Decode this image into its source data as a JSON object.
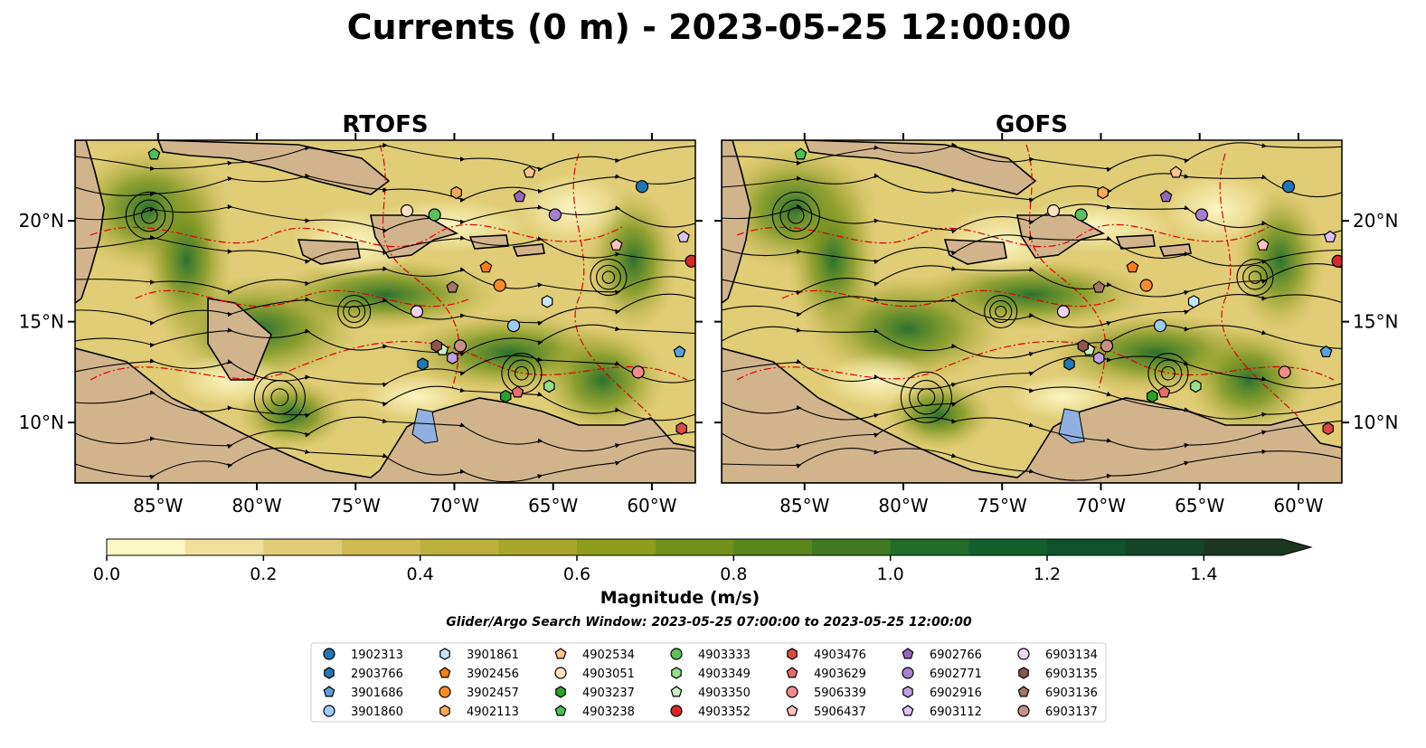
{
  "title": "Currents (0 m) - 2023-05-25 12:00:00",
  "colorbar": {
    "label": "Magnitude (m/s)",
    "ticks": [
      "0.0",
      "0.2",
      "0.4",
      "0.6",
      "0.8",
      "1.0",
      "1.2",
      "1.4"
    ],
    "levels": [
      0,
      0.1,
      0.2,
      0.3,
      0.4,
      0.5,
      0.6,
      0.7,
      0.8,
      0.9,
      1.0,
      1.1,
      1.2,
      1.3,
      1.4,
      1.5
    ],
    "colors": [
      "#fdf7c5",
      "#efe19c",
      "#e0cd76",
      "#cfbb52",
      "#bdb13e",
      "#a9a72a",
      "#8d9d1a",
      "#72911a",
      "#5a861d",
      "#3f7a21",
      "#226d2a",
      "#11602e",
      "#0e532b",
      "#154527",
      "#1c3620"
    ],
    "extend": "max"
  },
  "search_window": "Glider/Argo Search Window: 2023-05-25 07:00:00 to 2023-05-25 12:00:00",
  "chart_data": [
    {
      "type": "heatmap",
      "title": "RTOFS",
      "xlim": [
        -89.2,
        -57.8
      ],
      "ylim": [
        7.0,
        24.0
      ],
      "xticks": [
        "85°W",
        "80°W",
        "75°W",
        "70°W",
        "65°W",
        "60°W"
      ],
      "yticks": [
        "10°N",
        "15°N",
        "20°N"
      ],
      "land_color": "#d2b48c",
      "legend_placement": "below"
    },
    {
      "type": "heatmap",
      "title": "GOFS",
      "xlim": [
        -89.2,
        -57.8
      ],
      "ylim": [
        7.0,
        24.0
      ],
      "xticks": [
        "85°W",
        "80°W",
        "75°W",
        "70°W",
        "65°W",
        "60°W"
      ],
      "yticks": [
        "10°N",
        "15°N",
        "20°N"
      ],
      "land_color": "#d2b48c",
      "legend_placement": "below"
    }
  ],
  "platforms": [
    {
      "id": "1902313",
      "color": "#1f77b4",
      "marker": "circle",
      "lon": -60.5,
      "lat": 21.7
    },
    {
      "id": "2903766",
      "color": "#1f77b4",
      "marker": "hexagon",
      "lon": -71.6,
      "lat": 12.9
    },
    {
      "id": "3901686",
      "color": "#5aa0e0",
      "marker": "pentagon",
      "lon": -58.6,
      "lat": 13.5
    },
    {
      "id": "3901860",
      "color": "#9ec9f0",
      "marker": "circle",
      "lon": -67.0,
      "lat": 14.8
    },
    {
      "id": "3901861",
      "color": "#c6e4f7",
      "marker": "hexagon",
      "lon": -65.3,
      "lat": 16.0
    },
    {
      "id": "3902456",
      "color": "#ff7f0e",
      "marker": "pentagon",
      "lon": -68.4,
      "lat": 17.7
    },
    {
      "id": "3902457",
      "color": "#ff8c29",
      "marker": "circle",
      "lon": -67.7,
      "lat": 16.8
    },
    {
      "id": "4902113",
      "color": "#ffa952",
      "marker": "hexagon",
      "lon": -69.9,
      "lat": 21.4
    },
    {
      "id": "4902534",
      "color": "#ffc58a",
      "marker": "pentagon",
      "lon": -66.2,
      "lat": 22.4
    },
    {
      "id": "4903051",
      "color": "#ffe0c2",
      "marker": "circle",
      "lon": -72.4,
      "lat": 20.5
    },
    {
      "id": "4903237",
      "color": "#2ca02c",
      "marker": "hexagon",
      "lon": -67.4,
      "lat": 11.3
    },
    {
      "id": "4903238",
      "color": "#4cc24c",
      "marker": "pentagon",
      "lon": -85.2,
      "lat": 23.3
    },
    {
      "id": "4903333",
      "color": "#5cc05c",
      "marker": "circle",
      "lon": -71.0,
      "lat": 20.3
    },
    {
      "id": "4903349",
      "color": "#98df8a",
      "marker": "hexagon",
      "lon": -65.2,
      "lat": 11.8
    },
    {
      "id": "4903350",
      "color": "#c8f0c0",
      "marker": "pentagon",
      "lon": -70.6,
      "lat": 13.6
    },
    {
      "id": "4903352",
      "color": "#d62728",
      "marker": "circle",
      "lon": -58.0,
      "lat": 18.0
    },
    {
      "id": "4903476",
      "color": "#e04848",
      "marker": "hexagon",
      "lon": -58.5,
      "lat": 9.7
    },
    {
      "id": "4903629",
      "color": "#ec6a6a",
      "marker": "pentagon",
      "lon": -66.8,
      "lat": 11.5
    },
    {
      "id": "5906339",
      "color": "#f08c8c",
      "marker": "circle",
      "lon": -60.7,
      "lat": 12.5
    },
    {
      "id": "5906437",
      "color": "#ffc2c2",
      "marker": "pentagon",
      "lon": -61.8,
      "lat": 18.8
    },
    {
      "id": "6902766",
      "color": "#9467bd",
      "marker": "pentagon",
      "lon": -66.7,
      "lat": 21.2
    },
    {
      "id": "6902771",
      "color": "#a67fd0",
      "marker": "circle",
      "lon": -64.9,
      "lat": 20.3
    },
    {
      "id": "6902916",
      "color": "#bfa0e0",
      "marker": "hexagon",
      "lon": -70.1,
      "lat": 13.2
    },
    {
      "id": "6903112",
      "color": "#d8c4f4",
      "marker": "pentagon",
      "lon": -58.4,
      "lat": 19.2
    },
    {
      "id": "6903134",
      "color": "#f0d4f8",
      "marker": "circle",
      "lon": -71.9,
      "lat": 15.5
    },
    {
      "id": "6903135",
      "color": "#8c564b",
      "marker": "hexagon",
      "lon": -70.9,
      "lat": 13.8
    },
    {
      "id": "6903136",
      "color": "#a87466",
      "marker": "pentagon",
      "lon": -70.1,
      "lat": 16.7
    },
    {
      "id": "6903137",
      "color": "#c49184",
      "marker": "circle",
      "lon": -69.7,
      "lat": 13.8
    }
  ]
}
